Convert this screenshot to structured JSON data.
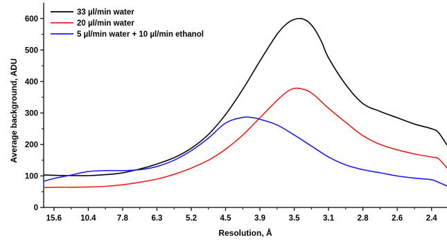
{
  "chart_data": {
    "type": "line",
    "xlabel": "Resolution, Å",
    "ylabel": "Average background, ADU",
    "xticks": [
      "15.6",
      "10.4",
      "7.8",
      "6.3",
      "5.2",
      "4.5",
      "3.9",
      "3.5",
      "3.1",
      "2.8",
      "2.6",
      "2.4"
    ],
    "xtick_positions": [
      1,
      2,
      3,
      4,
      5,
      6,
      7,
      8,
      9,
      10,
      11,
      12
    ],
    "xlim": [
      0.7,
      12.45
    ],
    "ylim": [
      0,
      650
    ],
    "yticks": [
      0,
      100,
      200,
      300,
      400,
      500,
      600
    ],
    "grid": false,
    "legend_position": "top-left",
    "series": [
      {
        "name": "33 µl/min water",
        "color": "#000000",
        "x": [
          0.7,
          1.0,
          1.5,
          2.0,
          2.5,
          3.0,
          3.5,
          4.0,
          4.5,
          5.0,
          5.5,
          6.0,
          6.5,
          7.0,
          7.5,
          7.8,
          8.0,
          8.2,
          8.4,
          8.6,
          8.8,
          9.0,
          9.5,
          10.0,
          10.5,
          11.0,
          11.5,
          12.0,
          12.2,
          12.45
        ],
        "values": [
          103,
          102,
          101,
          101,
          104,
          110,
          122,
          138,
          158,
          188,
          232,
          295,
          375,
          465,
          550,
          585,
          597,
          600,
          590,
          565,
          525,
          475,
          390,
          330,
          305,
          285,
          265,
          250,
          238,
          198
        ]
      },
      {
        "name": "20 µl/min water",
        "color": "#e8201c",
        "x": [
          0.7,
          1.0,
          1.5,
          2.0,
          2.5,
          3.0,
          3.5,
          4.0,
          4.5,
          5.0,
          5.5,
          6.0,
          6.5,
          7.0,
          7.5,
          7.8,
          8.0,
          8.2,
          8.4,
          8.6,
          8.8,
          9.0,
          9.5,
          10.0,
          10.5,
          11.0,
          11.5,
          12.0,
          12.2,
          12.45
        ],
        "values": [
          63,
          64,
          64,
          65,
          67,
          72,
          80,
          90,
          105,
          125,
          150,
          185,
          230,
          285,
          340,
          368,
          378,
          377,
          370,
          355,
          335,
          315,
          270,
          228,
          200,
          183,
          170,
          160,
          155,
          125
        ]
      },
      {
        "name": "5 µl/min water + 10 µl/min ethanol",
        "color": "#1a1aee",
        "x": [
          0.7,
          1.0,
          1.5,
          2.0,
          2.5,
          3.0,
          3.5,
          4.0,
          4.5,
          5.0,
          5.5,
          6.0,
          6.5,
          6.8,
          7.0,
          7.5,
          8.0,
          8.5,
          9.0,
          9.5,
          10.0,
          10.5,
          11.0,
          11.5,
          12.0,
          12.2,
          12.45
        ],
        "values": [
          83,
          92,
          103,
          114,
          117,
          117,
          120,
          130,
          150,
          180,
          220,
          268,
          286,
          285,
          280,
          262,
          230,
          195,
          160,
          135,
          120,
          110,
          100,
          93,
          88,
          80,
          68
        ]
      }
    ]
  }
}
